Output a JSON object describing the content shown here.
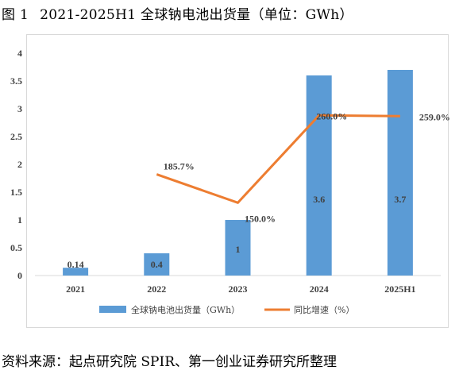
{
  "figure": {
    "label": "图 1",
    "title": "2021-2025H1 全球钠电池出货量（单位：GWh）"
  },
  "source": "资料来源：起点研究院 SPIR、第一创业证券研究所整理",
  "chart_data": {
    "type": "bar",
    "categories": [
      "2021",
      "2022",
      "2023",
      "2024",
      "2025H1"
    ],
    "series": [
      {
        "name": "全球钠电池出货量（GWh）",
        "type": "bar",
        "values": [
          0.14,
          0.4,
          1,
          3.6,
          3.7
        ],
        "labels": [
          "0.14",
          "0.4",
          "1",
          "3.6",
          "3.7"
        ],
        "color": "#5b9bd5"
      },
      {
        "name": "同比增速（%）",
        "type": "line",
        "values": [
          null,
          185.7,
          150.0,
          260.0,
          259.0
        ],
        "labels": [
          "",
          "185.7%",
          "150.0%",
          "260.0%",
          "259.0%"
        ],
        "color": "#ed7d31"
      }
    ],
    "yticks": [
      "0",
      "0.5",
      "1",
      "1.5",
      "2",
      "2.5",
      "3",
      "3.5",
      "4"
    ],
    "ylim": [
      0,
      4
    ],
    "grid": false,
    "legend_position": "bottom"
  }
}
